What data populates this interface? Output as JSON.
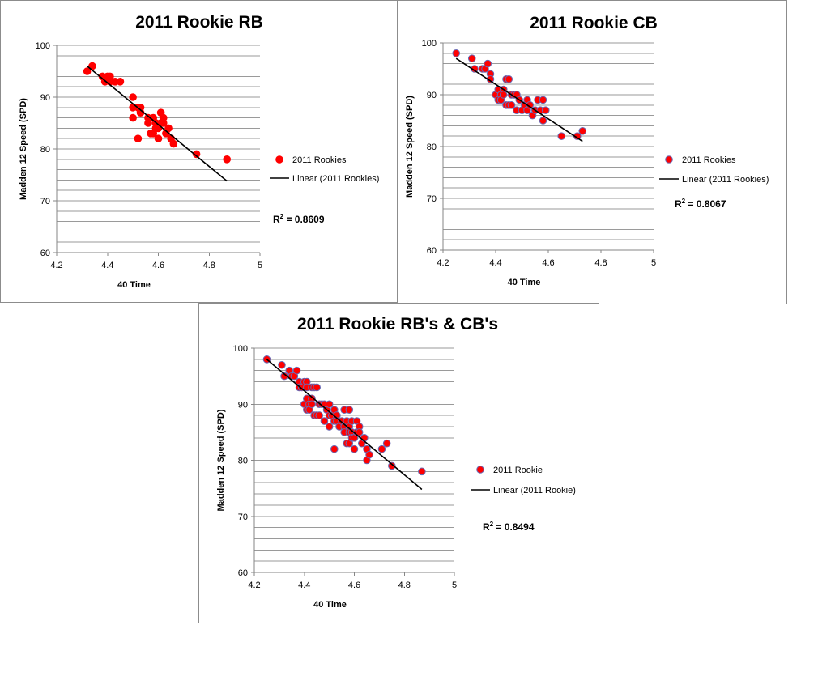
{
  "chart_data": [
    {
      "type": "scatter",
      "title": "2011 Rookie RB",
      "xlabel": "40 Time",
      "ylabel": "Madden 12 Speed (SPD)",
      "xlim": [
        4.2,
        5
      ],
      "ylim": [
        60,
        100
      ],
      "xticks": [
        "4.2",
        "4.4",
        "4.6",
        "4.8",
        "5"
      ],
      "yticks": [
        "60",
        "70",
        "80",
        "90",
        "100"
      ],
      "legend": {
        "position": "right",
        "points_label": "2011 Rookies",
        "line_label": "Linear (2011 Rookies)"
      },
      "r_squared": "0.8609",
      "series": [
        {
          "name": "2011 Rookies",
          "color": "#ff0000",
          "edge_color": "#ff0000",
          "points": [
            [
              4.32,
              95
            ],
            [
              4.34,
              96
            ],
            [
              4.38,
              94
            ],
            [
              4.39,
              93
            ],
            [
              4.4,
              94
            ],
            [
              4.41,
              94
            ],
            [
              4.41,
              93
            ],
            [
              4.43,
              93
            ],
            [
              4.45,
              93
            ],
            [
              4.5,
              90
            ],
            [
              4.5,
              88
            ],
            [
              4.5,
              86
            ],
            [
              4.52,
              88
            ],
            [
              4.52,
              82
            ],
            [
              4.53,
              88
            ],
            [
              4.53,
              87
            ],
            [
              4.56,
              86
            ],
            [
              4.56,
              85
            ],
            [
              4.57,
              83
            ],
            [
              4.58,
              86
            ],
            [
              4.58,
              83
            ],
            [
              4.59,
              85
            ],
            [
              4.59,
              84
            ],
            [
              4.6,
              84
            ],
            [
              4.6,
              82
            ],
            [
              4.61,
              87
            ],
            [
              4.61,
              85
            ],
            [
              4.62,
              86
            ],
            [
              4.62,
              85
            ],
            [
              4.63,
              83
            ],
            [
              4.64,
              84
            ],
            [
              4.65,
              82
            ],
            [
              4.66,
              81
            ],
            [
              4.75,
              79
            ],
            [
              4.87,
              78
            ]
          ]
        }
      ],
      "trendline": {
        "name": "Linear (2011 Rookies)",
        "x": [
          4.32,
          4.87
        ],
        "y": [
          96.0,
          73.8
        ]
      }
    },
    {
      "type": "scatter",
      "title": "2011 Rookie CB",
      "xlabel": "40 Time",
      "ylabel": "Madden 12 Speed (SPD)",
      "xlim": [
        4.2,
        5
      ],
      "ylim": [
        60,
        100
      ],
      "xticks": [
        "4.2",
        "4.4",
        "4.6",
        "4.8",
        "5"
      ],
      "yticks": [
        "60",
        "70",
        "80",
        "90",
        "100"
      ],
      "legend": {
        "position": "right",
        "points_label": "2011 Rookies",
        "line_label": "Linear (2011 Rookies)"
      },
      "r_squared": "0.8067",
      "series": [
        {
          "name": "2011 Rookies",
          "color": "#ff0000",
          "edge_color": "#6a6ab4",
          "points": [
            [
              4.25,
              98
            ],
            [
              4.31,
              97
            ],
            [
              4.32,
              95
            ],
            [
              4.35,
              95
            ],
            [
              4.36,
              95
            ],
            [
              4.37,
              96
            ],
            [
              4.38,
              94
            ],
            [
              4.38,
              93
            ],
            [
              4.4,
              90
            ],
            [
              4.41,
              91
            ],
            [
              4.41,
              89
            ],
            [
              4.42,
              90
            ],
            [
              4.42,
              89
            ],
            [
              4.43,
              91
            ],
            [
              4.43,
              90
            ],
            [
              4.44,
              93
            ],
            [
              4.44,
              88
            ],
            [
              4.45,
              93
            ],
            [
              4.45,
              88
            ],
            [
              4.46,
              90
            ],
            [
              4.46,
              88
            ],
            [
              4.47,
              90
            ],
            [
              4.48,
              87
            ],
            [
              4.48,
              90
            ],
            [
              4.49,
              89
            ],
            [
              4.5,
              87
            ],
            [
              4.51,
              88
            ],
            [
              4.52,
              87
            ],
            [
              4.52,
              89
            ],
            [
              4.53,
              88
            ],
            [
              4.54,
              86
            ],
            [
              4.55,
              87
            ],
            [
              4.56,
              89
            ],
            [
              4.57,
              87
            ],
            [
              4.58,
              89
            ],
            [
              4.58,
              85
            ],
            [
              4.59,
              87
            ],
            [
              4.65,
              82
            ],
            [
              4.71,
              82
            ],
            [
              4.73,
              83
            ]
          ]
        }
      ],
      "trendline": {
        "name": "Linear (2011 Rookies)",
        "x": [
          4.25,
          4.73
        ],
        "y": [
          97.0,
          81.0
        ]
      }
    },
    {
      "type": "scatter",
      "title": "2011 Rookie RB's & CB's",
      "xlabel": "40 Time",
      "ylabel": "Madden 12 Speed (SPD)",
      "xlim": [
        4.2,
        5
      ],
      "ylim": [
        60,
        100
      ],
      "xticks": [
        "4.2",
        "4.4",
        "4.6",
        "4.8",
        "5"
      ],
      "yticks": [
        "60",
        "70",
        "80",
        "90",
        "100"
      ],
      "legend": {
        "position": "right",
        "points_label": "2011 Rookie",
        "line_label": "Linear (2011 Rookie)"
      },
      "r_squared": "0.8494",
      "series": [
        {
          "name": "2011 Rookie",
          "color": "#ff0000",
          "edge_color": "#6a6ab4",
          "points": [
            [
              4.25,
              98
            ],
            [
              4.31,
              97
            ],
            [
              4.32,
              95
            ],
            [
              4.34,
              96
            ],
            [
              4.35,
              95
            ],
            [
              4.36,
              95
            ],
            [
              4.37,
              96
            ],
            [
              4.38,
              94
            ],
            [
              4.38,
              93
            ],
            [
              4.39,
              93
            ],
            [
              4.4,
              94
            ],
            [
              4.4,
              90
            ],
            [
              4.41,
              94
            ],
            [
              4.41,
              93
            ],
            [
              4.41,
              91
            ],
            [
              4.41,
              89
            ],
            [
              4.42,
              90
            ],
            [
              4.42,
              89
            ],
            [
              4.43,
              93
            ],
            [
              4.43,
              91
            ],
            [
              4.43,
              90
            ],
            [
              4.44,
              93
            ],
            [
              4.44,
              88
            ],
            [
              4.45,
              93
            ],
            [
              4.45,
              88
            ],
            [
              4.46,
              90
            ],
            [
              4.46,
              88
            ],
            [
              4.47,
              90
            ],
            [
              4.48,
              87
            ],
            [
              4.48,
              90
            ],
            [
              4.49,
              89
            ],
            [
              4.5,
              90
            ],
            [
              4.5,
              88
            ],
            [
              4.5,
              86
            ],
            [
              4.51,
              88
            ],
            [
              4.52,
              87
            ],
            [
              4.52,
              89
            ],
            [
              4.52,
              82
            ],
            [
              4.53,
              88
            ],
            [
              4.53,
              87
            ],
            [
              4.54,
              86
            ],
            [
              4.55,
              87
            ],
            [
              4.56,
              89
            ],
            [
              4.56,
              86
            ],
            [
              4.56,
              85
            ],
            [
              4.57,
              87
            ],
            [
              4.57,
              83
            ],
            [
              4.58,
              89
            ],
            [
              4.58,
              86
            ],
            [
              4.58,
              85
            ],
            [
              4.58,
              83
            ],
            [
              4.59,
              87
            ],
            [
              4.59,
              85
            ],
            [
              4.59,
              84
            ],
            [
              4.6,
              84
            ],
            [
              4.6,
              82
            ],
            [
              4.61,
              87
            ],
            [
              4.61,
              85
            ],
            [
              4.62,
              86
            ],
            [
              4.62,
              85
            ],
            [
              4.63,
              83
            ],
            [
              4.64,
              84
            ],
            [
              4.65,
              82
            ],
            [
              4.65,
              80
            ],
            [
              4.66,
              81
            ],
            [
              4.71,
              82
            ],
            [
              4.73,
              83
            ],
            [
              4.75,
              79
            ],
            [
              4.87,
              78
            ]
          ]
        }
      ],
      "trendline": {
        "name": "Linear (2011 Rookie)",
        "x": [
          4.25,
          4.87
        ],
        "y": [
          98.0,
          74.8
        ]
      }
    }
  ]
}
